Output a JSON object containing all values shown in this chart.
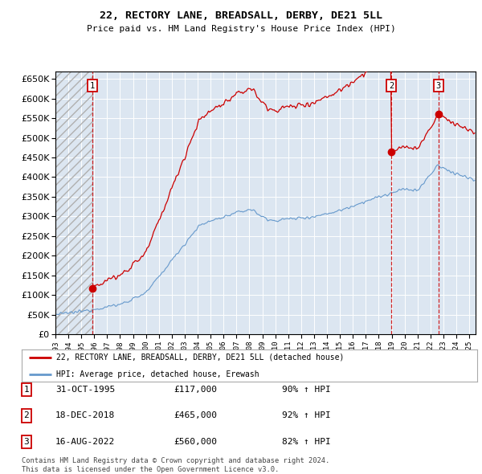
{
  "title": "22, RECTORY LANE, BREADSALL, DERBY, DE21 5LL",
  "subtitle": "Price paid vs. HM Land Registry's House Price Index (HPI)",
  "ylim": [
    0,
    670000
  ],
  "yticks": [
    0,
    50000,
    100000,
    150000,
    200000,
    250000,
    300000,
    350000,
    400000,
    450000,
    500000,
    550000,
    600000,
    650000
  ],
  "ytick_labels": [
    "£0",
    "£50K",
    "£100K",
    "£150K",
    "£200K",
    "£250K",
    "£300K",
    "£350K",
    "£400K",
    "£450K",
    "£500K",
    "£550K",
    "£600K",
    "£650K"
  ],
  "background_color": "#ffffff",
  "plot_bg_color": "#dce6f1",
  "grid_color": "#ffffff",
  "sale_color": "#cc0000",
  "hpi_color": "#6699cc",
  "sale_label": "22, RECTORY LANE, BREADSALL, DERBY, DE21 5LL (detached house)",
  "hpi_label": "HPI: Average price, detached house, Erewash",
  "purchases": [
    {
      "date": 1995.833,
      "price": 117000,
      "label": "1",
      "date_str": "31-OCT-1995",
      "pct": "90%"
    },
    {
      "date": 2018.958,
      "price": 465000,
      "label": "2",
      "date_str": "18-DEC-2018",
      "pct": "92%"
    },
    {
      "date": 2022.625,
      "price": 560000,
      "label": "3",
      "date_str": "16-AUG-2022",
      "pct": "82%"
    }
  ],
  "footer": "Contains HM Land Registry data © Crown copyright and database right 2024.\nThis data is licensed under the Open Government Licence v3.0.",
  "x_start": 1993.0,
  "x_end": 2025.5,
  "xtick_years": [
    1993,
    1994,
    1995,
    1996,
    1997,
    1998,
    1999,
    2000,
    2001,
    2002,
    2003,
    2004,
    2005,
    2006,
    2007,
    2008,
    2009,
    2010,
    2011,
    2012,
    2013,
    2014,
    2015,
    2016,
    2017,
    2018,
    2019,
    2020,
    2021,
    2022,
    2023,
    2024,
    2025
  ]
}
